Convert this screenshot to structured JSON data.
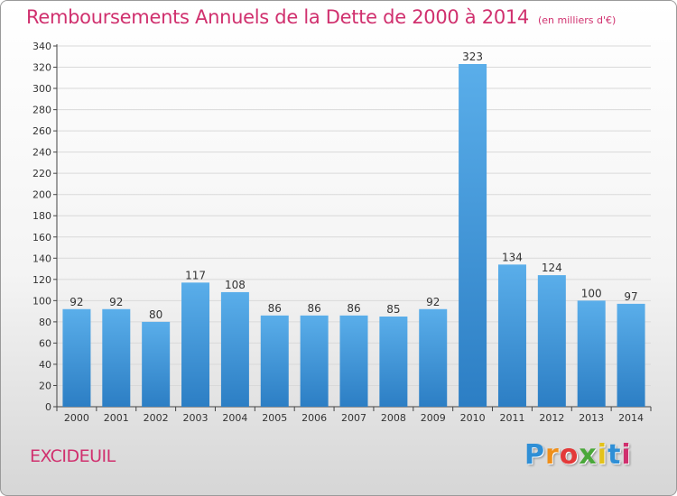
{
  "title": "Remboursements Annuels de la Dette de 2000 à 2014",
  "unit_note": "(en milliers d'€)",
  "commune": "EXCIDEUIL",
  "logo_text": "Proxiti",
  "colors": {
    "title": "#d0306e",
    "bar_light": "#5aaeea",
    "bar_dark": "#2c7ec4",
    "grid": "#d9d9d9"
  },
  "chart_data": {
    "type": "bar",
    "title": "Remboursements Annuels de la Dette de 2000 à 2014",
    "xlabel": "",
    "ylabel": "(en milliers d'€)",
    "categories": [
      "2000",
      "2001",
      "2002",
      "2003",
      "2004",
      "2005",
      "2006",
      "2007",
      "2008",
      "2009",
      "2010",
      "2011",
      "2012",
      "2013",
      "2014"
    ],
    "values": [
      92,
      92,
      80,
      117,
      108,
      86,
      86,
      86,
      85,
      92,
      323,
      134,
      124,
      100,
      97
    ],
    "ylim": [
      0,
      340
    ],
    "yticks": [
      0,
      20,
      40,
      60,
      80,
      100,
      120,
      140,
      160,
      180,
      200,
      220,
      240,
      260,
      280,
      300,
      320,
      340
    ],
    "grid": true,
    "legend": "none"
  }
}
